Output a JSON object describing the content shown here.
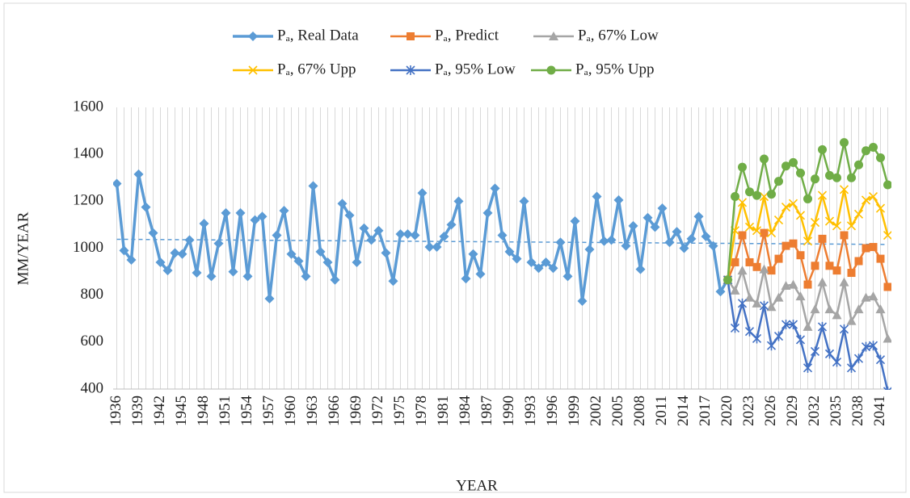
{
  "chart_data": {
    "type": "line",
    "xlabel": "YEAR",
    "ylabel": "MM/YEAR",
    "xlim": [
      1935.5,
      2042.5
    ],
    "ylim": [
      400,
      1600
    ],
    "xticks": [
      1936,
      1939,
      1942,
      1945,
      1948,
      1951,
      1954,
      1957,
      1960,
      1963,
      1966,
      1969,
      1972,
      1975,
      1978,
      1981,
      1984,
      1987,
      1990,
      1993,
      1996,
      1999,
      2002,
      2005,
      2008,
      2011,
      2014,
      2017,
      2020,
      2023,
      2026,
      2029,
      2032,
      2035,
      2038,
      2041
    ],
    "yticks": [
      400,
      600,
      800,
      1000,
      1200,
      1400,
      1600
    ],
    "grid": {
      "x": true,
      "y": false
    },
    "legend": "top",
    "series": [
      {
        "name": "Pₐ, Real Data",
        "color": "#5b9bd5",
        "marker": "diamond",
        "x": [
          1936,
          1937,
          1938,
          1939,
          1940,
          1941,
          1942,
          1943,
          1944,
          1945,
          1946,
          1947,
          1948,
          1949,
          1950,
          1951,
          1952,
          1953,
          1954,
          1955,
          1956,
          1957,
          1958,
          1959,
          1960,
          1961,
          1962,
          1963,
          1964,
          1965,
          1966,
          1967,
          1968,
          1969,
          1970,
          1971,
          1972,
          1973,
          1974,
          1975,
          1976,
          1977,
          1978,
          1979,
          1980,
          1981,
          1982,
          1983,
          1984,
          1985,
          1986,
          1987,
          1988,
          1989,
          1990,
          1991,
          1992,
          1993,
          1994,
          1995,
          1996,
          1997,
          1998,
          1999,
          2000,
          2001,
          2002,
          2003,
          2004,
          2005,
          2006,
          2007,
          2008,
          2009,
          2010,
          2011,
          2012,
          2013,
          2014,
          2015,
          2016,
          2017,
          2018,
          2019,
          2020
        ],
        "values": [
          1275,
          990,
          950,
          1315,
          1175,
          1065,
          940,
          905,
          980,
          975,
          1035,
          895,
          1105,
          880,
          1020,
          1150,
          900,
          1150,
          880,
          1120,
          1135,
          785,
          1055,
          1160,
          975,
          945,
          880,
          1265,
          985,
          940,
          865,
          1190,
          1140,
          940,
          1085,
          1035,
          1075,
          980,
          860,
          1060,
          1060,
          1055,
          1235,
          1005,
          1005,
          1050,
          1100,
          1200,
          870,
          975,
          890,
          1150,
          1255,
          1055,
          985,
          955,
          1200,
          940,
          915,
          940,
          915,
          1025,
          880,
          1115,
          775,
          995,
          1220,
          1030,
          1035,
          1205,
          1010,
          1095,
          910,
          1130,
          1090,
          1170,
          1025,
          1070,
          1000,
          1040,
          1135,
          1050,
          1010,
          815,
          865
        ]
      },
      {
        "name": "Pₐ, Predict",
        "color": "#ed7d31",
        "marker": "square",
        "x": [
          2020,
          2021,
          2022,
          2023,
          2024,
          2025,
          2026,
          2027,
          2028,
          2029,
          2030,
          2031,
          2032,
          2033,
          2034,
          2035,
          2036,
          2037,
          2038,
          2039,
          2040,
          2041,
          2042
        ],
        "values": [
          865,
          940,
          1055,
          940,
          920,
          1065,
          905,
          955,
          1010,
          1020,
          970,
          845,
          925,
          1040,
          925,
          905,
          1055,
          895,
          945,
          1000,
          1005,
          955,
          835
        ]
      },
      {
        "name": "Pₐ, 67% Low",
        "color": "#a5a5a5",
        "marker": "triangle",
        "x": [
          2020,
          2021,
          2022,
          2023,
          2024,
          2025,
          2026,
          2027,
          2028,
          2029,
          2030,
          2031,
          2032,
          2033,
          2034,
          2035,
          2036,
          2037,
          2038,
          2039,
          2040,
          2041,
          2042
        ],
        "values": [
          865,
          820,
          905,
          790,
          765,
          910,
          750,
          790,
          840,
          845,
          795,
          665,
          740,
          855,
          740,
          715,
          855,
          690,
          740,
          790,
          795,
          740,
          615
        ]
      },
      {
        "name": "Pₐ, 67% Upp",
        "color": "#ffc000",
        "marker": "x",
        "x": [
          2020,
          2021,
          2022,
          2023,
          2024,
          2025,
          2026,
          2027,
          2028,
          2029,
          2030,
          2031,
          2032,
          2033,
          2034,
          2035,
          2036,
          2037,
          2038,
          2039,
          2040,
          2041,
          2042
        ],
        "values": [
          865,
          1075,
          1195,
          1090,
          1075,
          1220,
          1065,
          1120,
          1175,
          1190,
          1140,
          1030,
          1110,
          1225,
          1115,
          1095,
          1250,
          1095,
          1145,
          1205,
          1220,
          1170,
          1055
        ]
      },
      {
        "name": "Pₐ, 95% Low",
        "color": "#4472c4",
        "marker": "asterisk",
        "x": [
          2020,
          2021,
          2022,
          2023,
          2024,
          2025,
          2026,
          2027,
          2028,
          2029,
          2030,
          2031,
          2032,
          2033,
          2034,
          2035,
          2036,
          2037,
          2038,
          2039,
          2040,
          2041,
          2042
        ],
        "values": [
          865,
          660,
          765,
          645,
          615,
          755,
          585,
          625,
          675,
          675,
          610,
          490,
          560,
          665,
          550,
          515,
          655,
          490,
          530,
          580,
          585,
          525,
          390
        ]
      },
      {
        "name": "Pₐ, 95% Upp",
        "color": "#70ad47",
        "marker": "circle",
        "x": [
          2020,
          2021,
          2022,
          2023,
          2024,
          2025,
          2026,
          2027,
          2028,
          2029,
          2030,
          2031,
          2032,
          2033,
          2034,
          2035,
          2036,
          2037,
          2038,
          2039,
          2040,
          2041,
          2042
        ],
        "values": [
          865,
          1220,
          1345,
          1240,
          1225,
          1380,
          1230,
          1285,
          1350,
          1365,
          1320,
          1210,
          1295,
          1420,
          1310,
          1300,
          1450,
          1300,
          1355,
          1415,
          1430,
          1385,
          1270
        ]
      }
    ],
    "trendline": {
      "color": "#5b9bd5",
      "x": [
        1936,
        2042
      ],
      "values": [
        1038,
        1016
      ]
    }
  }
}
